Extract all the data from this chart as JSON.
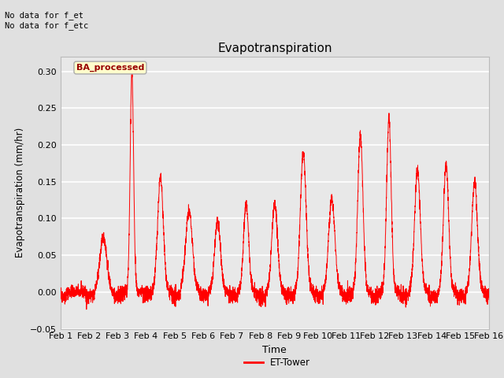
{
  "title": "Evapotranspiration",
  "xlabel": "Time",
  "ylabel": "Evapotranspiration (mm/hr)",
  "ylim": [
    -0.05,
    0.32
  ],
  "yticks": [
    -0.05,
    0.0,
    0.05,
    0.1,
    0.15,
    0.2,
    0.25,
    0.3
  ],
  "line_color": "red",
  "line_width": 0.7,
  "bg_color": "#e0e0e0",
  "plot_bg_color": "#e8e8e8",
  "shade_band_low": 0.05,
  "shade_band_high": 0.25,
  "shade_band_color": "#d8d8d8",
  "annotation_text": "No data for f_et\nNo data for f_etc",
  "legend_label": "ET-Tower",
  "legend_box_label": "BA_processed",
  "legend_box_color": "#ffffcc",
  "legend_box_edge_color": "#aaaaaa",
  "legend_box_text_color": "#990000",
  "n_points": 4320,
  "seed": 42
}
